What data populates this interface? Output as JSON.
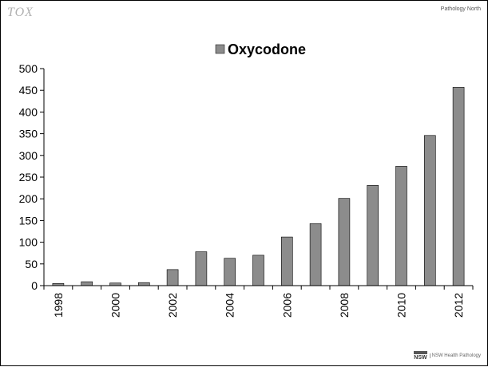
{
  "branding": {
    "top_left_logo": "TOX",
    "top_right_logo": "Pathology North",
    "bottom_right_logo": "NSW Health Pathology"
  },
  "chart_data": {
    "type": "bar",
    "categories": [
      "1998",
      "1999",
      "2000",
      "2001",
      "2002",
      "2003",
      "2004",
      "2005",
      "2006",
      "2007",
      "2008",
      "2009",
      "2010",
      "2011",
      "2012"
    ],
    "x_tick_labels": [
      "1998",
      "",
      "2000",
      "",
      "2002",
      "",
      "2004",
      "",
      "2006",
      "",
      "2008",
      "",
      "2010",
      "",
      "2012"
    ],
    "series": [
      {
        "name": "Oxycodone",
        "values": [
          5,
          9,
          6,
          7,
          37,
          78,
          63,
          70,
          112,
          143,
          201,
          231,
          275,
          346,
          457
        ],
        "color": "#8c8c8c"
      }
    ],
    "ylim": [
      0,
      500
    ],
    "y_ticks": [
      0,
      50,
      100,
      150,
      200,
      250,
      300,
      350,
      400,
      450,
      500
    ],
    "legend_position": "top-center",
    "grid": false
  }
}
